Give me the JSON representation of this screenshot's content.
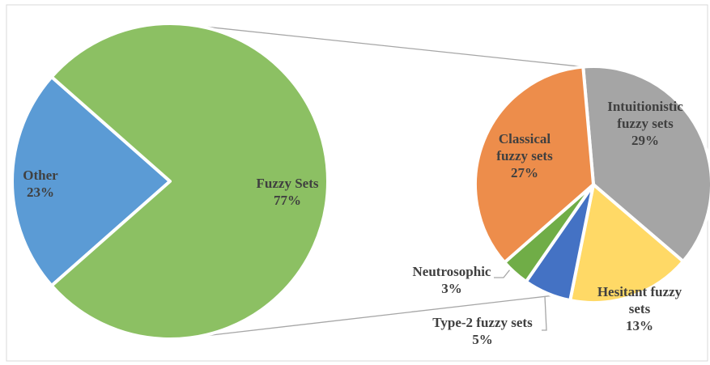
{
  "chart_data": [
    {
      "type": "pie",
      "categories": [
        "Other",
        "Fuzzy Sets"
      ],
      "values": [
        23,
        77
      ],
      "value_labels": [
        "23%",
        "77%"
      ],
      "colors": [
        "#5b9bd5",
        "#8cc063"
      ]
    },
    {
      "type": "pie",
      "categories": [
        "Intuitionistic fuzzy sets",
        "Hesitant fuzzy sets",
        "Type-2 fuzzy sets",
        "Neutrosophic",
        "Classical fuzzy sets"
      ],
      "values": [
        29,
        13,
        5,
        3,
        27
      ],
      "value_labels": [
        "29%",
        "13%",
        "5%",
        "3%",
        "27%"
      ],
      "colors": [
        "#a5a5a5",
        "#ffd966",
        "#4472c4",
        "#70ad47",
        "#ed8d4b"
      ]
    }
  ]
}
